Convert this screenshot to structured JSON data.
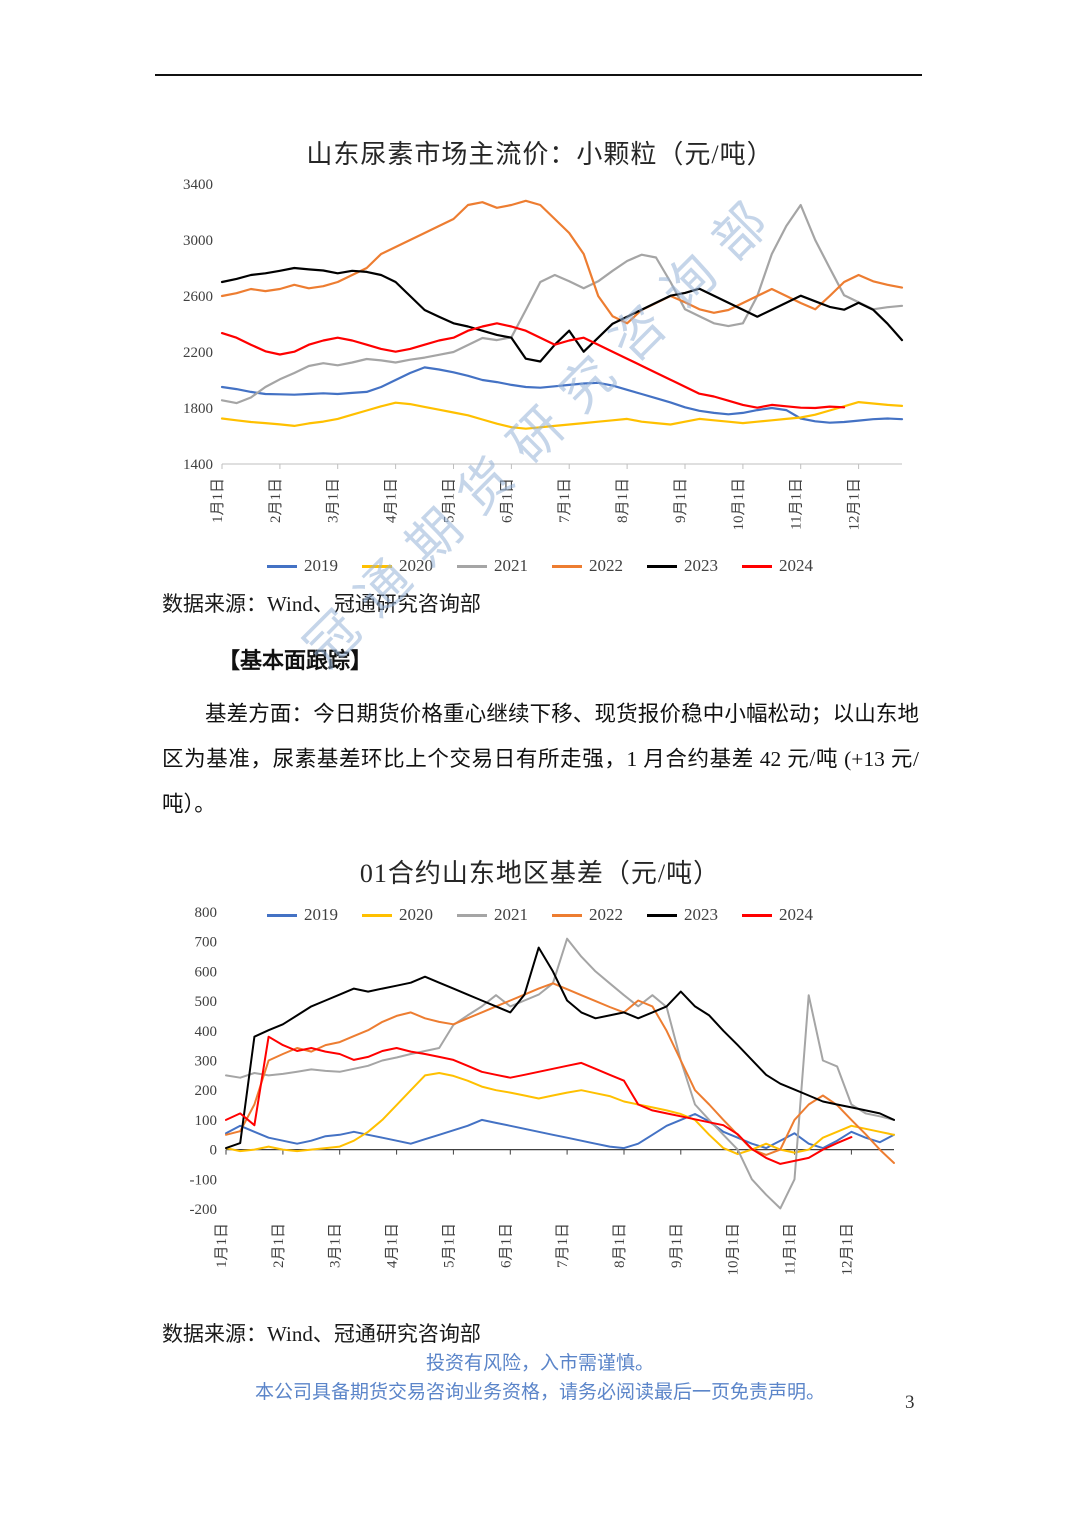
{
  "chart_data": [
    {
      "type": "line",
      "title": "山东尿素市场主流价：小颗粒（元/吨）",
      "y_min": 1400,
      "y_max": 3400,
      "y_step": 400,
      "axis_y": 1400,
      "x_count": 48,
      "x_label_every": 4,
      "x_labels": [
        "1月1日",
        "2月1日",
        "3月1日",
        "4月1日",
        "5月1日",
        "6月1日",
        "7月1日",
        "8月1日",
        "9月1日",
        "10月1日",
        "11月1日",
        "12月1日"
      ],
      "legend_position": "bottom",
      "series": [
        {
          "name": "2019",
          "color": "#4472C4",
          "values": [
            1950,
            1935,
            1915,
            1900,
            1898,
            1895,
            1900,
            1905,
            1900,
            1908,
            1915,
            1950,
            2000,
            2050,
            2090,
            2075,
            2055,
            2030,
            2000,
            1985,
            1965,
            1950,
            1945,
            1955,
            1965,
            1975,
            1980,
            1960,
            1930,
            1900,
            1870,
            1840,
            1805,
            1780,
            1765,
            1755,
            1765,
            1785,
            1800,
            1785,
            1725,
            1705,
            1695,
            1700,
            1710,
            1720,
            1725,
            1720
          ]
        },
        {
          "name": "2020",
          "color": "#FFC000",
          "values": [
            1725,
            1712,
            1700,
            1692,
            1683,
            1672,
            1690,
            1703,
            1722,
            1752,
            1782,
            1812,
            1838,
            1828,
            1808,
            1788,
            1768,
            1748,
            1718,
            1688,
            1663,
            1652,
            1662,
            1672,
            1682,
            1692,
            1702,
            1712,
            1722,
            1702,
            1692,
            1682,
            1702,
            1722,
            1712,
            1702,
            1692,
            1702,
            1712,
            1722,
            1732,
            1752,
            1782,
            1812,
            1842,
            1832,
            1822,
            1815
          ]
        },
        {
          "name": "2021",
          "color": "#A5A5A5",
          "values": [
            1855,
            1835,
            1875,
            1950,
            2005,
            2050,
            2100,
            2120,
            2105,
            2125,
            2150,
            2140,
            2125,
            2145,
            2160,
            2180,
            2200,
            2250,
            2300,
            2285,
            2305,
            2500,
            2700,
            2750,
            2705,
            2655,
            2705,
            2780,
            2850,
            2895,
            2875,
            2700,
            2505,
            2455,
            2405,
            2385,
            2405,
            2600,
            2900,
            3100,
            3250,
            3000,
            2800,
            2605,
            2555,
            2505,
            2520,
            2530
          ]
        },
        {
          "name": "2022",
          "color": "#ED7D31",
          "values": [
            2600,
            2620,
            2650,
            2635,
            2650,
            2680,
            2655,
            2670,
            2700,
            2750,
            2800,
            2900,
            2950,
            3000,
            3050,
            3100,
            3150,
            3250,
            3270,
            3230,
            3250,
            3280,
            3250,
            3150,
            3050,
            2900,
            2600,
            2455,
            2405,
            2500,
            2550,
            2600,
            2555,
            2505,
            2480,
            2500,
            2550,
            2600,
            2650,
            2600,
            2550,
            2505,
            2600,
            2700,
            2750,
            2705,
            2680,
            2660
          ]
        },
        {
          "name": "2023",
          "color": "#000000",
          "values": [
            2700,
            2722,
            2750,
            2762,
            2780,
            2800,
            2790,
            2782,
            2762,
            2780,
            2772,
            2750,
            2700,
            2600,
            2500,
            2452,
            2405,
            2382,
            2352,
            2322,
            2302,
            2152,
            2132,
            2252,
            2352,
            2202,
            2302,
            2402,
            2452,
            2502,
            2552,
            2602,
            2622,
            2652,
            2602,
            2552,
            2502,
            2452,
            2502,
            2552,
            2602,
            2562,
            2522,
            2502,
            2552,
            2502,
            2402,
            2285
          ]
        },
        {
          "name": "2024",
          "color": "#FF0000",
          "values": [
            2335,
            2302,
            2252,
            2205,
            2182,
            2202,
            2252,
            2282,
            2302,
            2282,
            2252,
            2222,
            2202,
            2222,
            2252,
            2282,
            2302,
            2352,
            2382,
            2405,
            2382,
            2352,
            2302,
            2252,
            2282,
            2302,
            2252,
            2202,
            2152,
            2102,
            2052,
            2002,
            1952,
            1902,
            1882,
            1852,
            1822,
            1802,
            1822,
            1812,
            1802,
            1800,
            1810,
            1805
          ]
        }
      ]
    },
    {
      "type": "line",
      "title": "01合约山东地区基差（元/吨）",
      "y_min": -200,
      "y_max": 800,
      "y_step": 100,
      "axis_y": 0,
      "x_count": 48,
      "x_label_every": 4,
      "x_labels": [
        "1月1日",
        "2月1日",
        "3月1日",
        "4月1日",
        "5月1日",
        "6月1日",
        "7月1日",
        "8月1日",
        "9月1日",
        "10月1日",
        "11月1日",
        "12月1日"
      ],
      "legend_position": "top",
      "series": [
        {
          "name": "2019",
          "color": "#4472C4",
          "values": [
            55,
            80,
            60,
            40,
            30,
            20,
            30,
            45,
            50,
            60,
            50,
            40,
            30,
            20,
            35,
            50,
            65,
            80,
            100,
            90,
            80,
            70,
            60,
            50,
            40,
            30,
            20,
            10,
            5,
            20,
            50,
            80,
            100,
            120,
            95,
            60,
            40,
            20,
            5,
            30,
            55,
            20,
            5,
            30,
            60,
            40,
            25,
            50
          ]
        },
        {
          "name": "2020",
          "color": "#FFC000",
          "values": [
            5,
            -5,
            0,
            10,
            0,
            -5,
            0,
            5,
            10,
            30,
            60,
            100,
            150,
            200,
            250,
            258,
            248,
            232,
            212,
            200,
            192,
            182,
            172,
            182,
            192,
            200,
            190,
            180,
            162,
            152,
            142,
            132,
            120,
            100,
            50,
            5,
            -15,
            0,
            20,
            0,
            -10,
            0,
            40,
            60,
            80,
            70,
            60,
            50
          ]
        },
        {
          "name": "2021",
          "color": "#A5A5A5",
          "values": [
            250,
            242,
            258,
            250,
            255,
            262,
            270,
            265,
            262,
            272,
            282,
            300,
            310,
            322,
            332,
            342,
            420,
            452,
            482,
            520,
            482,
            502,
            522,
            560,
            710,
            650,
            600,
            560,
            520,
            482,
            520,
            480,
            300,
            152,
            100,
            50,
            0,
            -100,
            -152,
            -198,
            -100,
            520,
            300,
            280,
            152,
            122,
            112,
            100
          ]
        },
        {
          "name": "2022",
          "color": "#ED7D31",
          "values": [
            50,
            62,
            152,
            300,
            322,
            342,
            330,
            352,
            362,
            382,
            402,
            430,
            450,
            462,
            442,
            430,
            422,
            442,
            462,
            482,
            502,
            522,
            542,
            560,
            540,
            520,
            500,
            480,
            462,
            502,
            482,
            400,
            300,
            200,
            152,
            100,
            50,
            0,
            -18,
            0,
            100,
            152,
            182,
            150,
            100,
            52,
            0,
            -45
          ]
        },
        {
          "name": "2023",
          "color": "#000000",
          "values": [
            5,
            22,
            380,
            402,
            422,
            452,
            482,
            502,
            522,
            542,
            532,
            542,
            552,
            562,
            582,
            562,
            542,
            522,
            502,
            482,
            462,
            522,
            680,
            600,
            502,
            462,
            442,
            452,
            462,
            442,
            462,
            482,
            532,
            482,
            452,
            400,
            352,
            302,
            252,
            222,
            202,
            182,
            162,
            152,
            142,
            132,
            122,
            100
          ]
        },
        {
          "name": "2024",
          "color": "#FF0000",
          "values": [
            100,
            122,
            82,
            380,
            352,
            332,
            342,
            330,
            322,
            302,
            312,
            332,
            342,
            330,
            322,
            312,
            302,
            282,
            262,
            252,
            242,
            252,
            262,
            272,
            282,
            292,
            272,
            252,
            232,
            152,
            132,
            122,
            112,
            102,
            92,
            82,
            52,
            2,
            -28,
            -48,
            -38,
            -28,
            0,
            22,
            42
          ]
        }
      ]
    }
  ],
  "watermark": "冠通期货研究咨询部",
  "source_note": "数据来源：Wind、冠通研究咨询部",
  "section_heading": "【基本面跟踪】",
  "paragraph": "基差方面：今日期货价格重心继续下移、现货报价稳中小幅松动；以山东地区为基准，尿素基差环比上个交易日有所走强，1 月合约基差 42 元/吨 (+13 元/吨）。",
  "footer": {
    "line1": "投资有风险，入市需谨慎。",
    "line2": "本公司具备期货交易咨询业务资格，请务必阅读最后一页免责声明。"
  },
  "page_number": "3"
}
